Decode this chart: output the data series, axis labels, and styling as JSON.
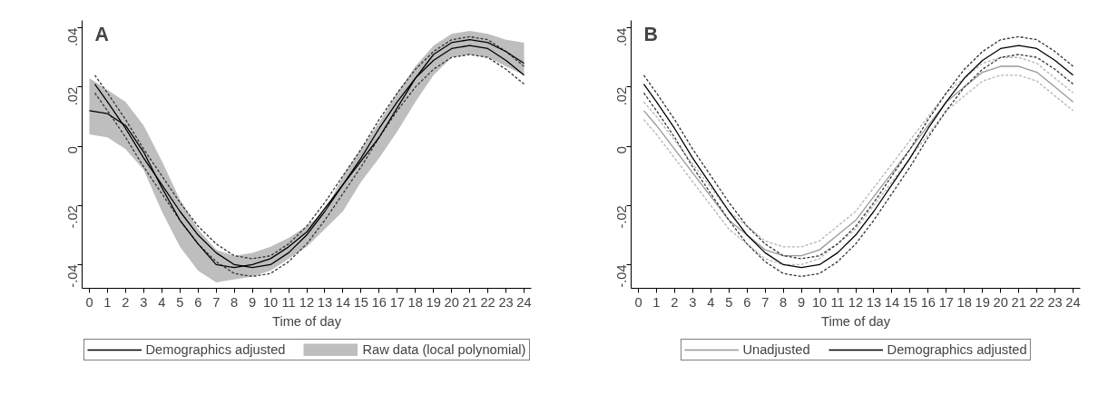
{
  "chart_data": [
    {
      "type": "line",
      "annotations": [
        "A"
      ],
      "xlabel": "Time of day",
      "xlim": [
        -0.4,
        24.4
      ],
      "ylim": [
        -0.048,
        0.0425
      ],
      "xticks": [
        0,
        1,
        2,
        3,
        4,
        5,
        6,
        7,
        8,
        9,
        10,
        11,
        12,
        13,
        14,
        15,
        16,
        17,
        18,
        19,
        20,
        21,
        22,
        23,
        24
      ],
      "yticks": [
        {
          "value": -0.04,
          "label": "-.04"
        },
        {
          "value": -0.02,
          "label": "-.02"
        },
        0,
        {
          "value": 0.02,
          "label": ".02"
        },
        {
          "value": 0.04,
          "label": ".04"
        }
      ],
      "grid": false,
      "legend": "bottom",
      "x": [
        0.3,
        1,
        2,
        3,
        4,
        5,
        6,
        7,
        8,
        9,
        10,
        11,
        12,
        13,
        14,
        15,
        16,
        17,
        18,
        19,
        20,
        21,
        22,
        23,
        24
      ],
      "series": [
        {
          "name": "Demographics adjusted",
          "color": "#000000",
          "line_style": "solid",
          "values": [
            0.021,
            0.015,
            0.006,
            -0.004,
            -0.013,
            -0.022,
            -0.03,
            -0.036,
            -0.04,
            -0.041,
            -0.04,
            -0.036,
            -0.03,
            -0.022,
            -0.013,
            -0.004,
            0.006,
            0.015,
            0.023,
            0.029,
            0.033,
            0.034,
            0.033,
            0.029,
            0.024
          ]
        },
        {
          "color": "#333333",
          "line_style": "dashed",
          "values": [
            0.024,
            0.018,
            0.009,
            -0.001,
            -0.01,
            -0.019,
            -0.027,
            -0.033,
            -0.037,
            -0.038,
            -0.037,
            -0.033,
            -0.027,
            -0.019,
            -0.01,
            -0.001,
            0.009,
            0.018,
            0.026,
            0.032,
            0.036,
            0.037,
            0.036,
            0.032,
            0.027
          ]
        },
        {
          "color": "#333333",
          "line_style": "dashed",
          "values": [
            0.018,
            0.012,
            0.003,
            -0.007,
            -0.016,
            -0.025,
            -0.033,
            -0.039,
            -0.043,
            -0.044,
            -0.043,
            -0.039,
            -0.033,
            -0.025,
            -0.016,
            -0.007,
            0.003,
            0.012,
            0.02,
            0.026,
            0.03,
            0.031,
            0.03,
            0.026,
            0.021
          ]
        },
        {
          "name": "Raw data (local polynomial)",
          "color": "#000000",
          "line_style": "solid",
          "x": [
            0,
            1,
            2,
            3,
            4,
            5,
            6,
            7,
            8,
            9,
            10,
            11,
            12,
            13,
            14,
            15,
            16,
            17,
            18,
            19,
            20,
            21,
            22,
            23,
            24
          ],
          "values": [
            0.012,
            0.011,
            0.007,
            -0.002,
            -0.014,
            -0.025,
            -0.033,
            -0.04,
            -0.041,
            -0.04,
            -0.038,
            -0.034,
            -0.029,
            -0.021,
            -0.013,
            -0.005,
            0.003,
            0.013,
            0.023,
            0.031,
            0.035,
            0.036,
            0.035,
            0.032,
            0.028
          ],
          "upper": [
            0.023,
            0.019,
            0.015,
            0.007,
            -0.005,
            -0.018,
            -0.028,
            -0.035,
            -0.037,
            -0.036,
            -0.034,
            -0.031,
            -0.027,
            -0.022,
            -0.01,
            -0.001,
            0.008,
            0.018,
            0.027,
            0.034,
            0.038,
            0.039,
            0.038,
            0.036,
            0.035
          ],
          "lower": [
            0.004,
            0.003,
            -0.001,
            -0.008,
            -0.022,
            -0.034,
            -0.042,
            -0.046,
            -0.045,
            -0.044,
            -0.042,
            -0.038,
            -0.034,
            -0.028,
            -0.022,
            -0.012,
            -0.004,
            0.005,
            0.015,
            0.024,
            0.03,
            0.031,
            0.03,
            0.027,
            0.024
          ]
        }
      ]
    },
    {
      "type": "line",
      "annotations": [
        "B"
      ],
      "xlabel": "Time of day",
      "xlim": [
        -0.4,
        24.4
      ],
      "ylim": [
        -0.048,
        0.0425
      ],
      "xticks": [
        0,
        1,
        2,
        3,
        4,
        5,
        6,
        7,
        8,
        9,
        10,
        11,
        12,
        13,
        14,
        15,
        16,
        17,
        18,
        19,
        20,
        21,
        22,
        23,
        24
      ],
      "yticks": [
        {
          "value": -0.04,
          "label": "-.04"
        },
        {
          "value": -0.02,
          "label": "-.02"
        },
        0,
        {
          "value": 0.02,
          "label": ".02"
        },
        {
          "value": 0.04,
          "label": ".04"
        }
      ],
      "grid": false,
      "legend": "bottom",
      "x": [
        0.3,
        1,
        2,
        3,
        4,
        5,
        6,
        7,
        8,
        9,
        10,
        11,
        12,
        13,
        14,
        15,
        16,
        17,
        18,
        19,
        20,
        21,
        22,
        23,
        24
      ],
      "series": [
        {
          "name": "Unadjusted",
          "color": "#999999",
          "line_style": "solid",
          "values": [
            0.012,
            0.007,
            -0.001,
            -0.009,
            -0.017,
            -0.025,
            -0.03,
            -0.035,
            -0.037,
            -0.037,
            -0.035,
            -0.03,
            -0.025,
            -0.017,
            -0.009,
            -0.001,
            0.007,
            0.015,
            0.02,
            0.025,
            0.027,
            0.027,
            0.025,
            0.02,
            0.015
          ]
        },
        {
          "color": "#b4b4b4",
          "line_style": "dashed",
          "values": [
            0.015,
            0.01,
            0.002,
            -0.006,
            -0.014,
            -0.022,
            -0.027,
            -0.032,
            -0.034,
            -0.034,
            -0.032,
            -0.027,
            -0.022,
            -0.014,
            -0.006,
            0.002,
            0.01,
            0.018,
            0.023,
            0.028,
            0.03,
            0.03,
            0.028,
            0.023,
            0.018
          ]
        },
        {
          "color": "#b4b4b4",
          "line_style": "dashed",
          "values": [
            0.009,
            0.004,
            -0.004,
            -0.012,
            -0.02,
            -0.028,
            -0.033,
            -0.038,
            -0.04,
            -0.04,
            -0.038,
            -0.033,
            -0.028,
            -0.02,
            -0.012,
            -0.004,
            0.004,
            0.012,
            0.017,
            0.022,
            0.024,
            0.024,
            0.022,
            0.017,
            0.012
          ]
        },
        {
          "name": "Demographics adjusted",
          "color": "#000000",
          "line_style": "solid",
          "values": [
            0.021,
            0.015,
            0.006,
            -0.004,
            -0.013,
            -0.022,
            -0.03,
            -0.036,
            -0.04,
            -0.041,
            -0.04,
            -0.036,
            -0.03,
            -0.022,
            -0.013,
            -0.004,
            0.006,
            0.015,
            0.023,
            0.029,
            0.033,
            0.034,
            0.033,
            0.029,
            0.024
          ]
        },
        {
          "color": "#333333",
          "line_style": "dashed",
          "values": [
            0.024,
            0.018,
            0.009,
            -0.001,
            -0.01,
            -0.019,
            -0.027,
            -0.033,
            -0.037,
            -0.038,
            -0.037,
            -0.033,
            -0.027,
            -0.019,
            -0.01,
            -0.001,
            0.009,
            0.018,
            0.026,
            0.032,
            0.036,
            0.037,
            0.036,
            0.032,
            0.027
          ]
        },
        {
          "color": "#333333",
          "line_style": "dashed",
          "values": [
            0.018,
            0.012,
            0.003,
            -0.007,
            -0.016,
            -0.025,
            -0.033,
            -0.039,
            -0.043,
            -0.044,
            -0.043,
            -0.039,
            -0.033,
            -0.025,
            -0.016,
            -0.007,
            0.003,
            0.012,
            0.02,
            0.026,
            0.03,
            0.031,
            0.03,
            0.026,
            0.021
          ]
        }
      ]
    }
  ]
}
